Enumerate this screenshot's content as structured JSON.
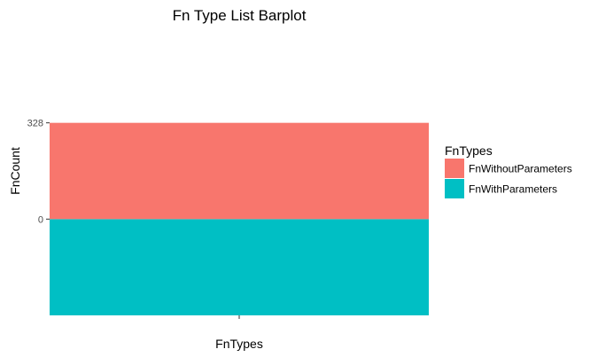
{
  "chart_data": {
    "type": "bar",
    "stacked": true,
    "title": "Fn Type List Barplot",
    "xlabel": "FnTypes",
    "ylabel": "FnCount",
    "categories": [
      ""
    ],
    "series": [
      {
        "name": "FnWithParameters",
        "values": [
          328
        ],
        "color": "#00BFC4"
      },
      {
        "name": "FnWithoutParameters",
        "values": [
          328
        ],
        "color": "#F8766D"
      }
    ],
    "yticks": [
      0,
      328
    ],
    "ylim": [
      -328,
      656
    ],
    "grid": false,
    "legend": {
      "title": "FnTypes",
      "position": "right",
      "entries": [
        {
          "label": "FnWithoutParameters",
          "color": "#F8766D"
        },
        {
          "label": "FnWithParameters",
          "color": "#00BFC4"
        }
      ]
    }
  }
}
